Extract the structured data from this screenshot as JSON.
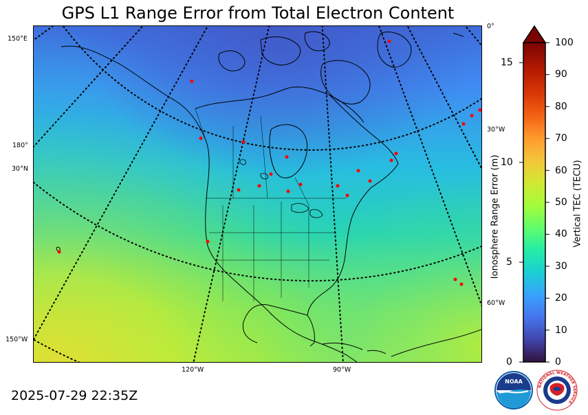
{
  "title": "GPS L1 Range Error from Total Electron Content",
  "timestamp": "2025-07-29 22:35Z",
  "map": {
    "graticule_labels_left": [
      "150°E",
      "180°",
      "30°N",
      "150°W"
    ],
    "graticule_labels_right": [
      "0°",
      "30°W",
      "60°W"
    ],
    "graticule_labels_bottom": [
      "120°W",
      "90°W"
    ],
    "station_marker_color": "#ff0000",
    "coastline_color": "#000000",
    "graticule_style": "dotted"
  },
  "range_axis": {
    "label": "Ionosphere Range Error (m)",
    "ticks": [
      "0",
      "5",
      "10",
      "15"
    ]
  },
  "colorbar": {
    "label": "Vertical TEC (TECU)",
    "ticks": [
      "0",
      "10",
      "20",
      "30",
      "40",
      "50",
      "60",
      "70",
      "80",
      "90",
      "100"
    ],
    "min": 0,
    "max": 100,
    "extend": "max",
    "colormap": "turbo",
    "over_color": "#7a0403"
  },
  "logos": {
    "noaa_text": "NOAA",
    "nws_text": "NATIONAL WEATHER SERVICE"
  }
}
